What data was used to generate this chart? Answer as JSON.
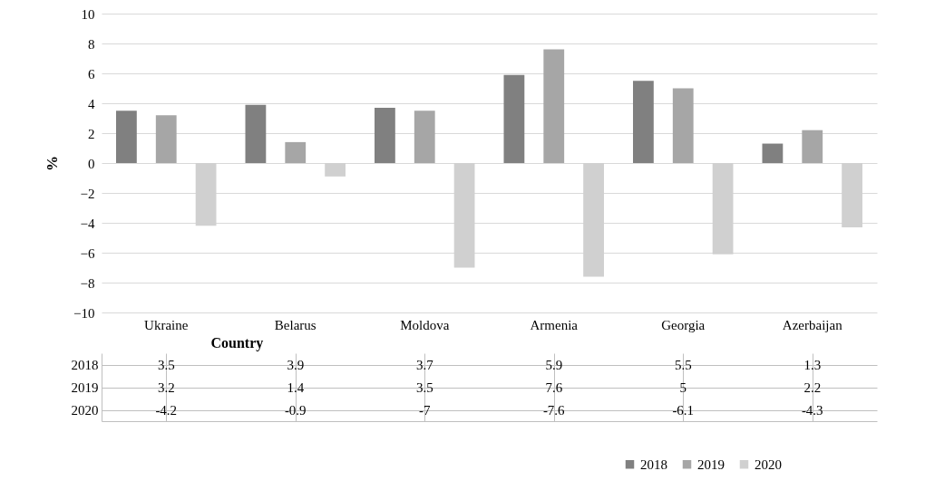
{
  "chart_data": {
    "type": "bar",
    "xlabel": "Country",
    "ylabel": "%",
    "categories": [
      "Ukraine",
      "Belarus",
      "Moldova",
      "Armenia",
      "Georgia",
      "Azerbaijan"
    ],
    "series": [
      {
        "name": "2018",
        "color": "#808080",
        "values": [
          3.5,
          3.9,
          3.7,
          5.9,
          5.5,
          1.3
        ]
      },
      {
        "name": "2019",
        "color": "#a6a6a6",
        "values": [
          3.2,
          1.4,
          3.5,
          7.6,
          5,
          2.2
        ]
      },
      {
        "name": "2020",
        "color": "#d0d0d0",
        "values": [
          -4.2,
          -0.9,
          -7,
          -7.6,
          -6.1,
          -4.3
        ]
      }
    ],
    "ylim": [
      -10,
      10
    ],
    "yticks": [
      -10,
      -8,
      -6,
      -4,
      -2,
      0,
      2,
      4,
      6,
      8,
      10
    ],
    "grid": "y",
    "legend": "bottom right",
    "data_labels": true
  }
}
